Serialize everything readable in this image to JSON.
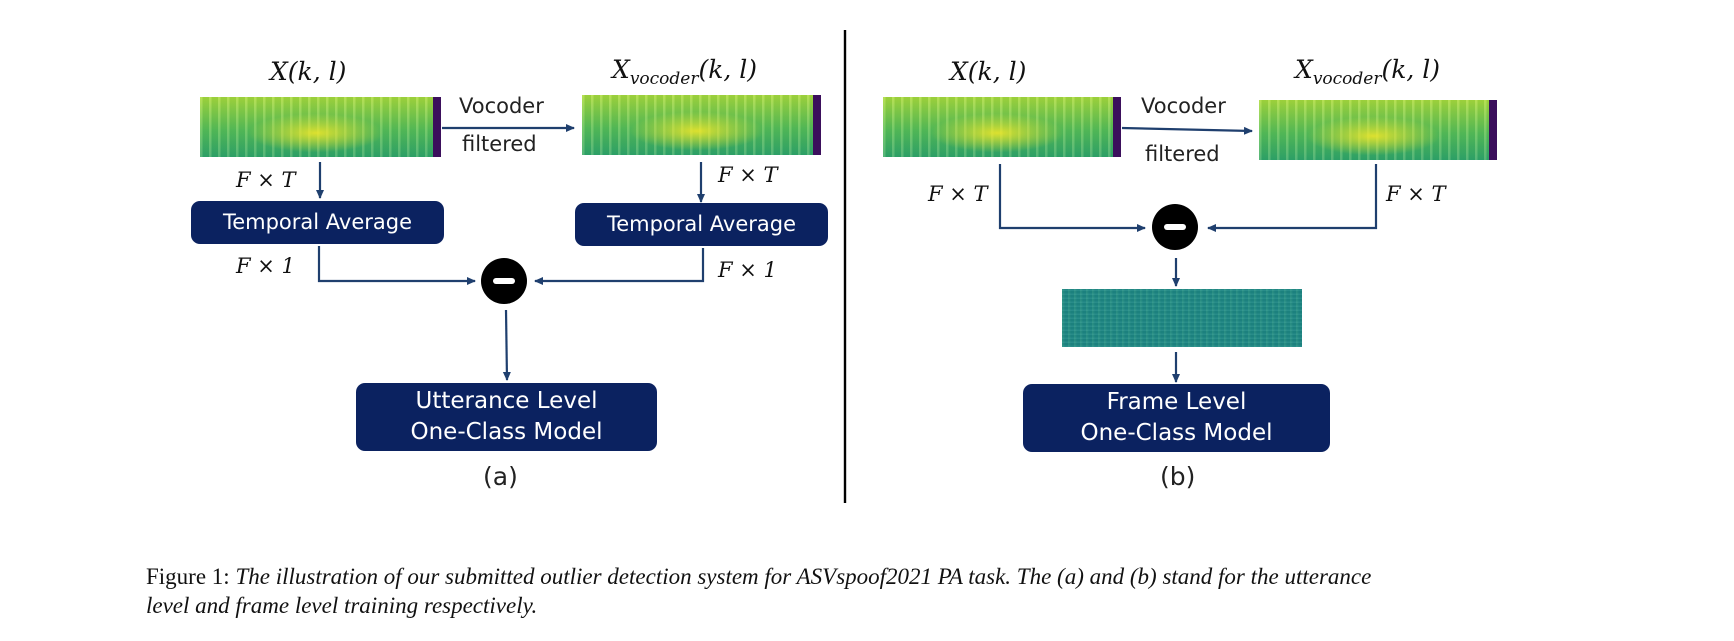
{
  "panel_a": {
    "input_label": "X(k, l)",
    "vocoder_label_base": "X",
    "vocoder_label_sub": "vocoder",
    "vocoder_label_args": "(k, l)",
    "edge_top": "Vocoder",
    "edge_bottom": "filtered",
    "dim_left_top": "F × T",
    "dim_right_top": "F × T",
    "dim_left_bottom": "F × 1",
    "dim_right_bottom": "F × 1",
    "avg_left": "Temporal Average",
    "avg_right": "Temporal Average",
    "model_line1": "Utterance Level",
    "model_line2": "One-Class Model",
    "sublabel": "(a)"
  },
  "panel_b": {
    "input_label": "X(k, l)",
    "vocoder_label_base": "X",
    "vocoder_label_sub": "vocoder",
    "vocoder_label_args": "(k, l)",
    "edge_top": "Vocoder",
    "edge_bottom": "filtered",
    "dim_left": "F × T",
    "dim_right": "F × T",
    "model_line1": "Frame Level",
    "model_line2": "One-Class Model",
    "sublabel": "(b)"
  },
  "colors": {
    "box_fill": "#0b2260",
    "arrow": "#1f3f6e",
    "spectrogram_edge": "#3b0f5c"
  },
  "caption": {
    "prefix": "Figure 1:",
    "line1": "The illustration of our submitted outlier detection system for ASVspoof2021 PA task. The (a) and (b) stand for the utterance",
    "line2": "level and frame level training respectively."
  }
}
